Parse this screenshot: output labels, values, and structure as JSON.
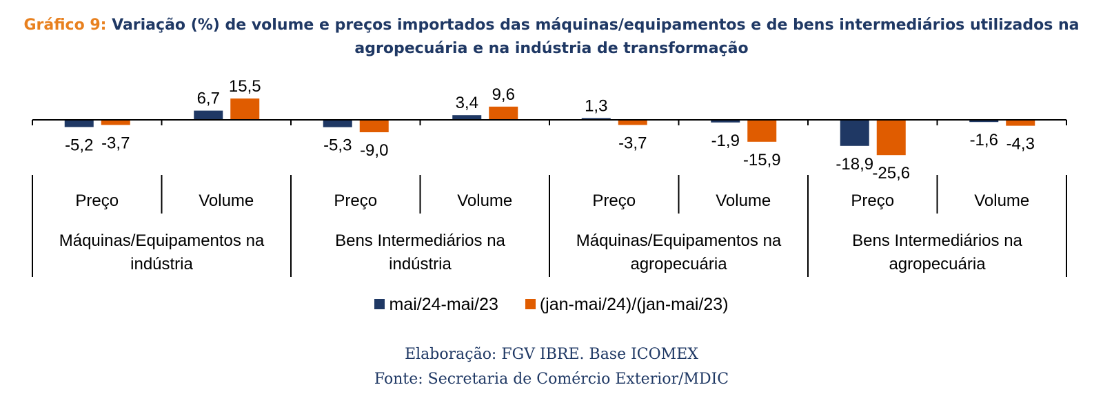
{
  "title_prefix": "Gráfico 9:",
  "title_line1": "Variação (%) de volume e preços importados das máquinas/equipamentos e de bens intermediários utilizados na",
  "title_line2": "agropecuária e na indústria de transformação",
  "colors": {
    "series1": "#1f3864",
    "series2": "#e05c00",
    "title_accent": "#e8801e",
    "title_main": "#1f3864"
  },
  "footer": {
    "elaboracao": "Elaboração: FGV IBRE. Base ICOMEX",
    "fonte": "Fonte: Secretaria de Comércio Exterior/MDIC"
  },
  "chart_data": {
    "type": "bar",
    "grid": false,
    "legend_position": "bottom",
    "categories": [
      "Preço",
      "Volume",
      "Preço",
      "Volume",
      "Preço",
      "Volume",
      "Preço",
      "Volume"
    ],
    "groups": [
      [
        "Máquinas/Equipamentos na",
        "indústria"
      ],
      [
        "Bens Intermediários na",
        "indústria"
      ],
      [
        "Máquinas/Equipamentos na",
        "agropecuária"
      ],
      [
        "Bens Intermediários na",
        "agropecuária"
      ]
    ],
    "series": [
      {
        "name": "mai/24-mai/23",
        "values": [
          -5.2,
          6.7,
          -5.3,
          3.4,
          1.3,
          -1.9,
          -18.9,
          -1.6
        ],
        "labels": [
          "-5,2",
          "6,7",
          "-5,3",
          "3,4",
          "1,3",
          "-1,9",
          "-18,9",
          "-1,6"
        ]
      },
      {
        "name": "(jan-mai/24)/(jan-mai/23)",
        "values": [
          -3.7,
          15.5,
          -9.0,
          9.6,
          -3.7,
          -15.9,
          -25.6,
          -4.3
        ],
        "labels": [
          "-3,7",
          "15,5",
          "-9,0",
          "9,6",
          "-3,7",
          "-15,9",
          "-25,6",
          "-4,3"
        ]
      }
    ]
  }
}
